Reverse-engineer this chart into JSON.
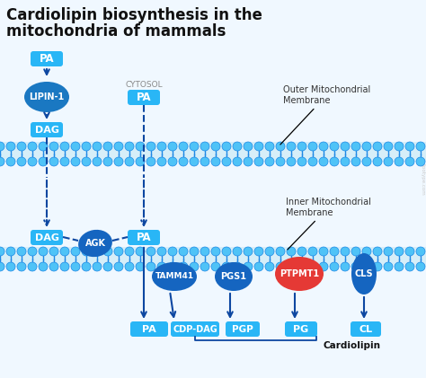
{
  "title_line1": "Cardiolipin biosynthesis in the",
  "title_line2": "mitochondria of mammals",
  "bg_color": "#f0f8ff",
  "title_color": "#111111",
  "blue_dark": "#0d47a1",
  "blue_box": "#29b6f6",
  "blue_enzyme": "#1565c0",
  "blue_mem_fc": "#4fc3f7",
  "blue_mem_ec": "#1e88e5",
  "red_color": "#e53935",
  "outer_label": "Outer Mitochondrial\nMembrane",
  "inner_label": "Inner Mitochondrial\nMembrane",
  "watermark": "lipotype.com"
}
